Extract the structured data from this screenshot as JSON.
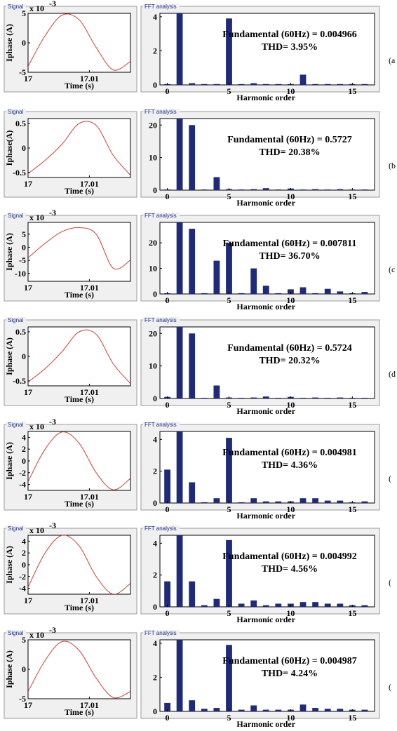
{
  "figure": {
    "rows": [
      {
        "row_label": "(a",
        "signal": {
          "title": "Signal",
          "xlabel": "Time (s)",
          "ylabel": "Iphase (A)",
          "multiplier": "x 10",
          "multiplier_exp": "-3",
          "xticks": [
            "17",
            "17.01"
          ],
          "yticks": [
            {
              "v": 5,
              "t": "5"
            },
            {
              "v": 0,
              "t": "0"
            },
            {
              "v": -5,
              "t": "-5"
            }
          ],
          "ylim": [
            -5,
            5
          ],
          "xlim": [
            17,
            17.0167
          ]
        },
        "fft": {
          "title": "FFT analysis",
          "xlabel": "Harmonic order",
          "annotation_line1": "Fundamental (60Hz) = 0.004966",
          "annotation_line2": "THD= 3.95%",
          "xticks": [
            "0",
            "5",
            "10",
            "15"
          ],
          "yticks": [
            {
              "v": 0,
              "t": "0"
            },
            {
              "v": 2,
              "t": "2"
            },
            {
              "v": 4,
              "t": "4"
            }
          ],
          "ylim": [
            0,
            4.2
          ]
        }
      },
      {
        "row_label": "(b",
        "signal": {
          "title": "Signal",
          "xlabel": "Time (s)",
          "ylabel": "Iphase(A)",
          "multiplier": "",
          "multiplier_exp": "",
          "xticks": [
            "17",
            "17.01"
          ],
          "yticks": [
            {
              "v": 0.5,
              "t": "0.5"
            },
            {
              "v": 0,
              "t": "0"
            },
            {
              "v": -0.5,
              "t": "-0.5"
            }
          ],
          "ylim": [
            -0.6,
            0.6
          ],
          "xlim": [
            17,
            17.0167
          ]
        },
        "fft": {
          "title": "FFT analysis",
          "xlabel": "Harmonic order",
          "annotation_line1": "Fundamental (60Hz) = 0.5727",
          "annotation_line2": "THD= 20.38%",
          "xticks": [
            "0",
            "5",
            "10",
            "15"
          ],
          "yticks": [
            {
              "v": 0,
              "t": "0"
            },
            {
              "v": 10,
              "t": "10"
            },
            {
              "v": 20,
              "t": "20"
            }
          ],
          "ylim": [
            0,
            22
          ]
        }
      },
      {
        "row_label": "(c",
        "signal": {
          "title": "Signal",
          "xlabel": "Time (s)",
          "ylabel": "Iphase (A)",
          "multiplier": "x 10",
          "multiplier_exp": "-3",
          "xticks": [
            "17",
            "17.01"
          ],
          "yticks": [
            {
              "v": 5,
              "t": "5"
            },
            {
              "v": 0,
              "t": "0"
            },
            {
              "v": -5,
              "t": "-5"
            },
            {
              "v": -10,
              "t": "-10"
            }
          ],
          "ylim": [
            -13,
            9.5
          ],
          "xlim": [
            17,
            17.0167
          ]
        },
        "fft": {
          "title": "FFT analysis",
          "xlabel": "Harmonic order",
          "annotation_line1": "Fundamental (60Hz) = 0.007811",
          "annotation_line2": "THD= 36.70%",
          "xticks": [
            "0",
            "5",
            "10",
            "15"
          ],
          "yticks": [
            {
              "v": 0,
              "t": "0"
            },
            {
              "v": 10,
              "t": "10"
            },
            {
              "v": 20,
              "t": "20"
            }
          ],
          "ylim": [
            0,
            28
          ]
        }
      },
      {
        "row_label": "(d",
        "signal": {
          "title": "Signal",
          "xlabel": "Time (s)",
          "ylabel": "Iphase (A)",
          "multiplier": "",
          "multiplier_exp": "",
          "xticks": [
            "17",
            "17.01"
          ],
          "yticks": [
            {
              "v": 0.5,
              "t": "0.5"
            },
            {
              "v": 0,
              "t": "0"
            },
            {
              "v": -0.5,
              "t": "-0.5"
            }
          ],
          "ylim": [
            -0.6,
            0.6
          ],
          "xlim": [
            17,
            17.0167
          ]
        },
        "fft": {
          "title": "FFT analysis",
          "xlabel": "Harmonic order",
          "annotation_line1": "Fundamental (60Hz) = 0.5724",
          "annotation_line2": "THD= 20.32%",
          "xticks": [
            "0",
            "5",
            "10",
            "15"
          ],
          "yticks": [
            {
              "v": 0,
              "t": "0"
            },
            {
              "v": 10,
              "t": "10"
            },
            {
              "v": 20,
              "t": "20"
            }
          ],
          "ylim": [
            0,
            22
          ]
        }
      },
      {
        "row_label": "(",
        "signal": {
          "title": "Signal",
          "xlabel": "Time (s)",
          "ylabel": "Iphase (A)",
          "multiplier": "x 10",
          "multiplier_exp": "-3",
          "xticks": [
            "17",
            "17.01"
          ],
          "yticks": [
            {
              "v": 4,
              "t": "4"
            },
            {
              "v": 2,
              "t": "2"
            },
            {
              "v": 0,
              "t": "0"
            },
            {
              "v": -2,
              "t": "-2"
            },
            {
              "v": -4,
              "t": "-4"
            }
          ],
          "ylim": [
            -5,
            5
          ],
          "xlim": [
            17,
            17.0167
          ]
        },
        "fft": {
          "title": "FFT analysis",
          "xlabel": "Harmonic order",
          "annotation_line1": "Fundamental (60Hz) = 0.004981",
          "annotation_line2": "THD= 4.36%",
          "xticks": [
            "0",
            "5",
            "10",
            "15"
          ],
          "yticks": [
            {
              "v": 0,
              "t": "0"
            },
            {
              "v": 2,
              "t": "2"
            },
            {
              "v": 4,
              "t": "4"
            }
          ],
          "ylim": [
            0,
            4.5
          ]
        }
      },
      {
        "row_label": "(",
        "signal": {
          "title": "Signal",
          "xlabel": "Time (s)",
          "ylabel": "Iphase (A)",
          "multiplier": "x 10",
          "multiplier_exp": "-3",
          "xticks": [
            "17",
            "17.01"
          ],
          "yticks": [
            {
              "v": 4,
              "t": "4"
            },
            {
              "v": 2,
              "t": "2"
            },
            {
              "v": 0,
              "t": "0"
            },
            {
              "v": -2,
              "t": "-2"
            },
            {
              "v": -4,
              "t": "-4"
            }
          ],
          "ylim": [
            -5,
            5
          ],
          "xlim": [
            17,
            17.0167
          ]
        },
        "fft": {
          "title": "FFT analysis",
          "xlabel": "Harmonic order",
          "annotation_line1": "Fundamental (60Hz) = 0.004992",
          "annotation_line2": "THD= 4.56%",
          "xticks": [
            "0",
            "5",
            "10",
            "15"
          ],
          "yticks": [
            {
              "v": 0,
              "t": "0"
            },
            {
              "v": 2,
              "t": "2"
            },
            {
              "v": 4,
              "t": "4"
            }
          ],
          "ylim": [
            0,
            4.5
          ]
        }
      },
      {
        "row_label": "(",
        "signal": {
          "title": "Signal",
          "xlabel": "Time (s)",
          "ylabel": "Iphase (A)",
          "multiplier": "x 10",
          "multiplier_exp": "-3",
          "xticks": [
            "17",
            "17.01"
          ],
          "yticks": [
            {
              "v": 5,
              "t": "5"
            },
            {
              "v": 0,
              "t": "0"
            },
            {
              "v": -5,
              "t": "-5"
            }
          ],
          "ylim": [
            -5,
            5
          ],
          "xlim": [
            17,
            17.0167
          ]
        },
        "fft": {
          "title": "FFT analysis",
          "xlabel": "Harmonic order",
          "annotation_line1": "Fundamental (60Hz) = 0.004987",
          "annotation_line2": "THD= 4.24%",
          "xticks": [
            "0",
            "5",
            "10",
            "15"
          ],
          "yticks": [
            {
              "v": 0,
              "t": "0"
            },
            {
              "v": 2,
              "t": "2"
            },
            {
              "v": 4,
              "t": "4"
            }
          ],
          "ylim": [
            0,
            4.2
          ]
        }
      }
    ]
  },
  "chart_data": [
    {
      "type": "line",
      "x": [
        17,
        17.00278,
        17.00556,
        17.00833,
        17.01111,
        17.01389,
        17.01667
      ],
      "values": [
        -4.0,
        1.2,
        4.7,
        3.9,
        -0.8,
        -4.6,
        -3.2
      ]
    },
    {
      "type": "bar",
      "x": [
        0,
        1,
        2,
        3,
        4,
        5,
        6,
        7,
        8,
        9,
        10,
        11,
        12,
        13,
        14,
        15,
        16
      ],
      "values": [
        0.05,
        4.2,
        0.1,
        0.05,
        0.05,
        3.9,
        0.05,
        0.1,
        0.05,
        0.05,
        0.05,
        0.6,
        0.05,
        0.05,
        0.05,
        0.05,
        0.05
      ]
    },
    {
      "type": "line",
      "x": [
        17,
        17.00278,
        17.00556,
        17.00833,
        17.01111,
        17.01389,
        17.01667
      ],
      "values": [
        -0.52,
        -0.25,
        0.08,
        0.5,
        0.46,
        -0.15,
        -0.55
      ]
    },
    {
      "type": "bar",
      "x": [
        0,
        1,
        2,
        3,
        4,
        5,
        6,
        7,
        8,
        9,
        10,
        11,
        12,
        13,
        14,
        15,
        16
      ],
      "values": [
        0.2,
        22,
        20,
        0.2,
        4,
        0.3,
        0.2,
        0.3,
        0.6,
        0.2,
        0.5,
        0.2,
        0.3,
        0.2,
        0.3,
        0.2,
        0.2
      ]
    },
    {
      "type": "line",
      "x": [
        17,
        17.00278,
        17.00556,
        17.00833,
        17.01111,
        17.01389,
        17.01667
      ],
      "values": [
        -4.0,
        1.5,
        6.0,
        7.5,
        5.0,
        -8.0,
        -5.0
      ]
    },
    {
      "type": "bar",
      "x": [
        0,
        1,
        2,
        3,
        4,
        5,
        6,
        7,
        8,
        9,
        10,
        11,
        12,
        13,
        14,
        15,
        16
      ],
      "values": [
        0.3,
        28,
        25.5,
        0.3,
        13,
        20,
        0.3,
        10,
        3.2,
        0.3,
        1.8,
        2.6,
        0.3,
        2,
        1,
        0.3,
        0.8
      ]
    },
    {
      "type": "line",
      "x": [
        17,
        17.00278,
        17.00556,
        17.00833,
        17.01111,
        17.01389,
        17.01667
      ],
      "values": [
        -0.52,
        -0.25,
        0.1,
        0.5,
        0.45,
        -0.15,
        -0.55
      ]
    },
    {
      "type": "bar",
      "x": [
        0,
        1,
        2,
        3,
        4,
        5,
        6,
        7,
        8,
        9,
        10,
        11,
        12,
        13,
        14,
        15,
        16
      ],
      "values": [
        0.5,
        22,
        20,
        0.2,
        4,
        0.3,
        0.2,
        0.3,
        0.6,
        0.2,
        0.5,
        0.2,
        0.3,
        0.2,
        0.3,
        0.2,
        0.2
      ]
    },
    {
      "type": "line",
      "x": [
        17,
        17.00278,
        17.00556,
        17.00833,
        17.01111,
        17.01389,
        17.01667
      ],
      "values": [
        -3.5,
        2.0,
        4.9,
        3.0,
        -2.0,
        -4.9,
        -3.0
      ]
    },
    {
      "type": "bar",
      "x": [
        0,
        1,
        2,
        3,
        4,
        5,
        6,
        7,
        8,
        9,
        10,
        11,
        12,
        13,
        14,
        15,
        16
      ],
      "values": [
        2.1,
        4.6,
        1.3,
        0.05,
        0.3,
        4.1,
        0.05,
        0.3,
        0.1,
        0.1,
        0.1,
        0.3,
        0.3,
        0.15,
        0.15,
        0.05,
        0.1
      ]
    },
    {
      "type": "line",
      "x": [
        17,
        17.00278,
        17.00556,
        17.00833,
        17.01111,
        17.01389,
        17.01667
      ],
      "values": [
        -3.8,
        2.0,
        5.0,
        3.2,
        -2.0,
        -5.0,
        -3.2
      ]
    },
    {
      "type": "bar",
      "x": [
        0,
        1,
        2,
        3,
        4,
        5,
        6,
        7,
        8,
        9,
        10,
        11,
        12,
        13,
        14,
        15,
        16
      ],
      "values": [
        1.6,
        4.6,
        1.6,
        0.1,
        0.5,
        4.2,
        0.2,
        0.4,
        0.1,
        0.2,
        0.2,
        0.3,
        0.3,
        0.2,
        0.2,
        0.1,
        0.1
      ]
    },
    {
      "type": "line",
      "x": [
        17,
        17.00278,
        17.00556,
        17.00833,
        17.01111,
        17.01389,
        17.01667
      ],
      "values": [
        -3.8,
        1.5,
        4.7,
        3.2,
        -1.5,
        -4.8,
        -3.8
      ]
    },
    {
      "type": "bar",
      "x": [
        0,
        1,
        2,
        3,
        4,
        5,
        6,
        7,
        8,
        9,
        10,
        11,
        12,
        13,
        14,
        15,
        16
      ],
      "values": [
        0.5,
        4.2,
        0.65,
        0.15,
        0.2,
        3.9,
        0.1,
        0.35,
        0.1,
        0.1,
        0.1,
        0.4,
        0.2,
        0.15,
        0.15,
        0.1,
        0.1
      ]
    }
  ],
  "colors": {
    "signal_line": "#c8413a",
    "bar": "#1f2a7a",
    "panel_bg": "#f0f0f0",
    "title": "#1a2a8c"
  }
}
